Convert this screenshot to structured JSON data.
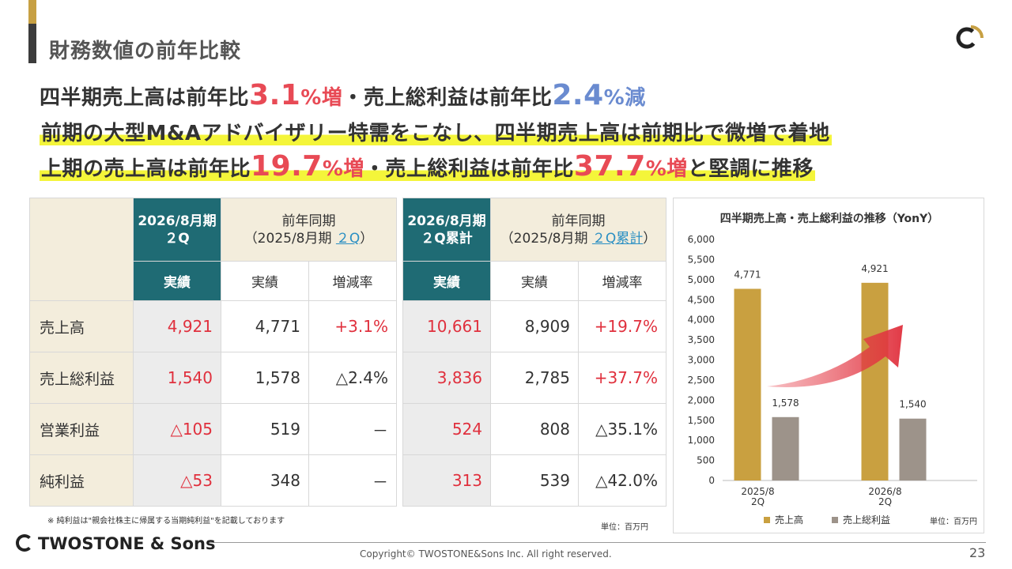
{
  "page": {
    "title": "財務数値の前年比較",
    "page_number": "23",
    "copyright": "Copyright© TWOSTONE&Sons Inc. All right reserved.",
    "company_logo_text": "TWOSTONE & Sons"
  },
  "headlines": {
    "line1": {
      "p1": "四半期売上高は前年比",
      "v1": "3.1",
      "s1": "%増",
      "p2": "・売上総利益は前年比",
      "v2": "2.4",
      "s2": "%減"
    },
    "line2": "前期の大型M&Aアドバイザリー特需をこなし、四半期売上高は前期比で微増で着地",
    "line3": {
      "p1": "上期の売上高は前年比",
      "v1": "19.7",
      "s1": "%増",
      "p2": "・売上総利益は前年比",
      "v2": "37.7",
      "s2": "%増",
      "p3": "と堅調に推移"
    }
  },
  "table_q": {
    "head_current_1": "2026/8月期",
    "head_current_2": "２Q",
    "head_prev_1": "前年同期",
    "head_prev_2a": "（2025/8月期 ",
    "head_prev_2b": "２Q",
    "head_prev_2c": "）",
    "sub_actual": "実績",
    "sub_prev_actual": "実績",
    "sub_change": "増減率",
    "rows": [
      {
        "label": "売上高",
        "current": "4,921",
        "prev": "4,771",
        "change": "+3.1%"
      },
      {
        "label": "売上総利益",
        "current": "1,540",
        "prev": "1,578",
        "change": "△2.4%"
      },
      {
        "label": "営業利益",
        "current": "△105",
        "prev": "519",
        "change": "－"
      },
      {
        "label": "純利益",
        "current": "△53",
        "prev": "348",
        "change": "－"
      }
    ]
  },
  "table_h": {
    "head_current_1": "2026/8月期",
    "head_current_2": "２Q累計",
    "head_prev_1": "前年同期",
    "head_prev_2a": "（2025/8月期 ",
    "head_prev_2b": "２Q累計",
    "head_prev_2c": "）",
    "sub_actual": "実績",
    "sub_prev_actual": "実績",
    "sub_change": "増減率",
    "rows": [
      {
        "current": "10,661",
        "prev": "8,909",
        "change": "+19.7%"
      },
      {
        "current": "3,836",
        "prev": "2,785",
        "change": "+37.7%"
      },
      {
        "current": "524",
        "prev": "808",
        "change": "△35.1%"
      },
      {
        "current": "313",
        "prev": "539",
        "change": "△42.0%"
      }
    ]
  },
  "footnote": "※ 純利益は\"親会社株主に帰属する当期純利益\"を記載しております",
  "unit_table": "単位：百万円",
  "colors": {
    "teal": "#1f6b74",
    "beige": "#f3eddc",
    "red": "#e0303d",
    "gold": "#c9a040",
    "gray_bar": "#9d938a"
  },
  "chart_data": {
    "type": "bar",
    "title": "四半期売上高・売上総利益の推移（YonY）",
    "categories": [
      "2025/8\n2Q",
      "2026/8\n2Q"
    ],
    "series": [
      {
        "name": "売上高",
        "values": [
          4771,
          4921
        ],
        "color": "#c9a040"
      },
      {
        "name": "売上総利益",
        "values": [
          1578,
          1540
        ],
        "color": "#9d938a"
      }
    ],
    "data_labels": [
      [
        "4,771",
        "4,921"
      ],
      [
        "1,578",
        "1,540"
      ]
    ],
    "ylim": [
      0,
      6000
    ],
    "yticks": [
      0,
      500,
      1000,
      1500,
      2000,
      2500,
      3000,
      3500,
      4000,
      4500,
      5000,
      5500,
      6000
    ],
    "ytick_labels": [
      "0",
      "500",
      "1,000",
      "1,500",
      "2,000",
      "2,500",
      "3,000",
      "3,500",
      "4,000",
      "4,500",
      "5,000",
      "5,500",
      "6,000"
    ],
    "legend_placement": "bottom",
    "unit_label": "単位：百万円",
    "grid": false
  }
}
